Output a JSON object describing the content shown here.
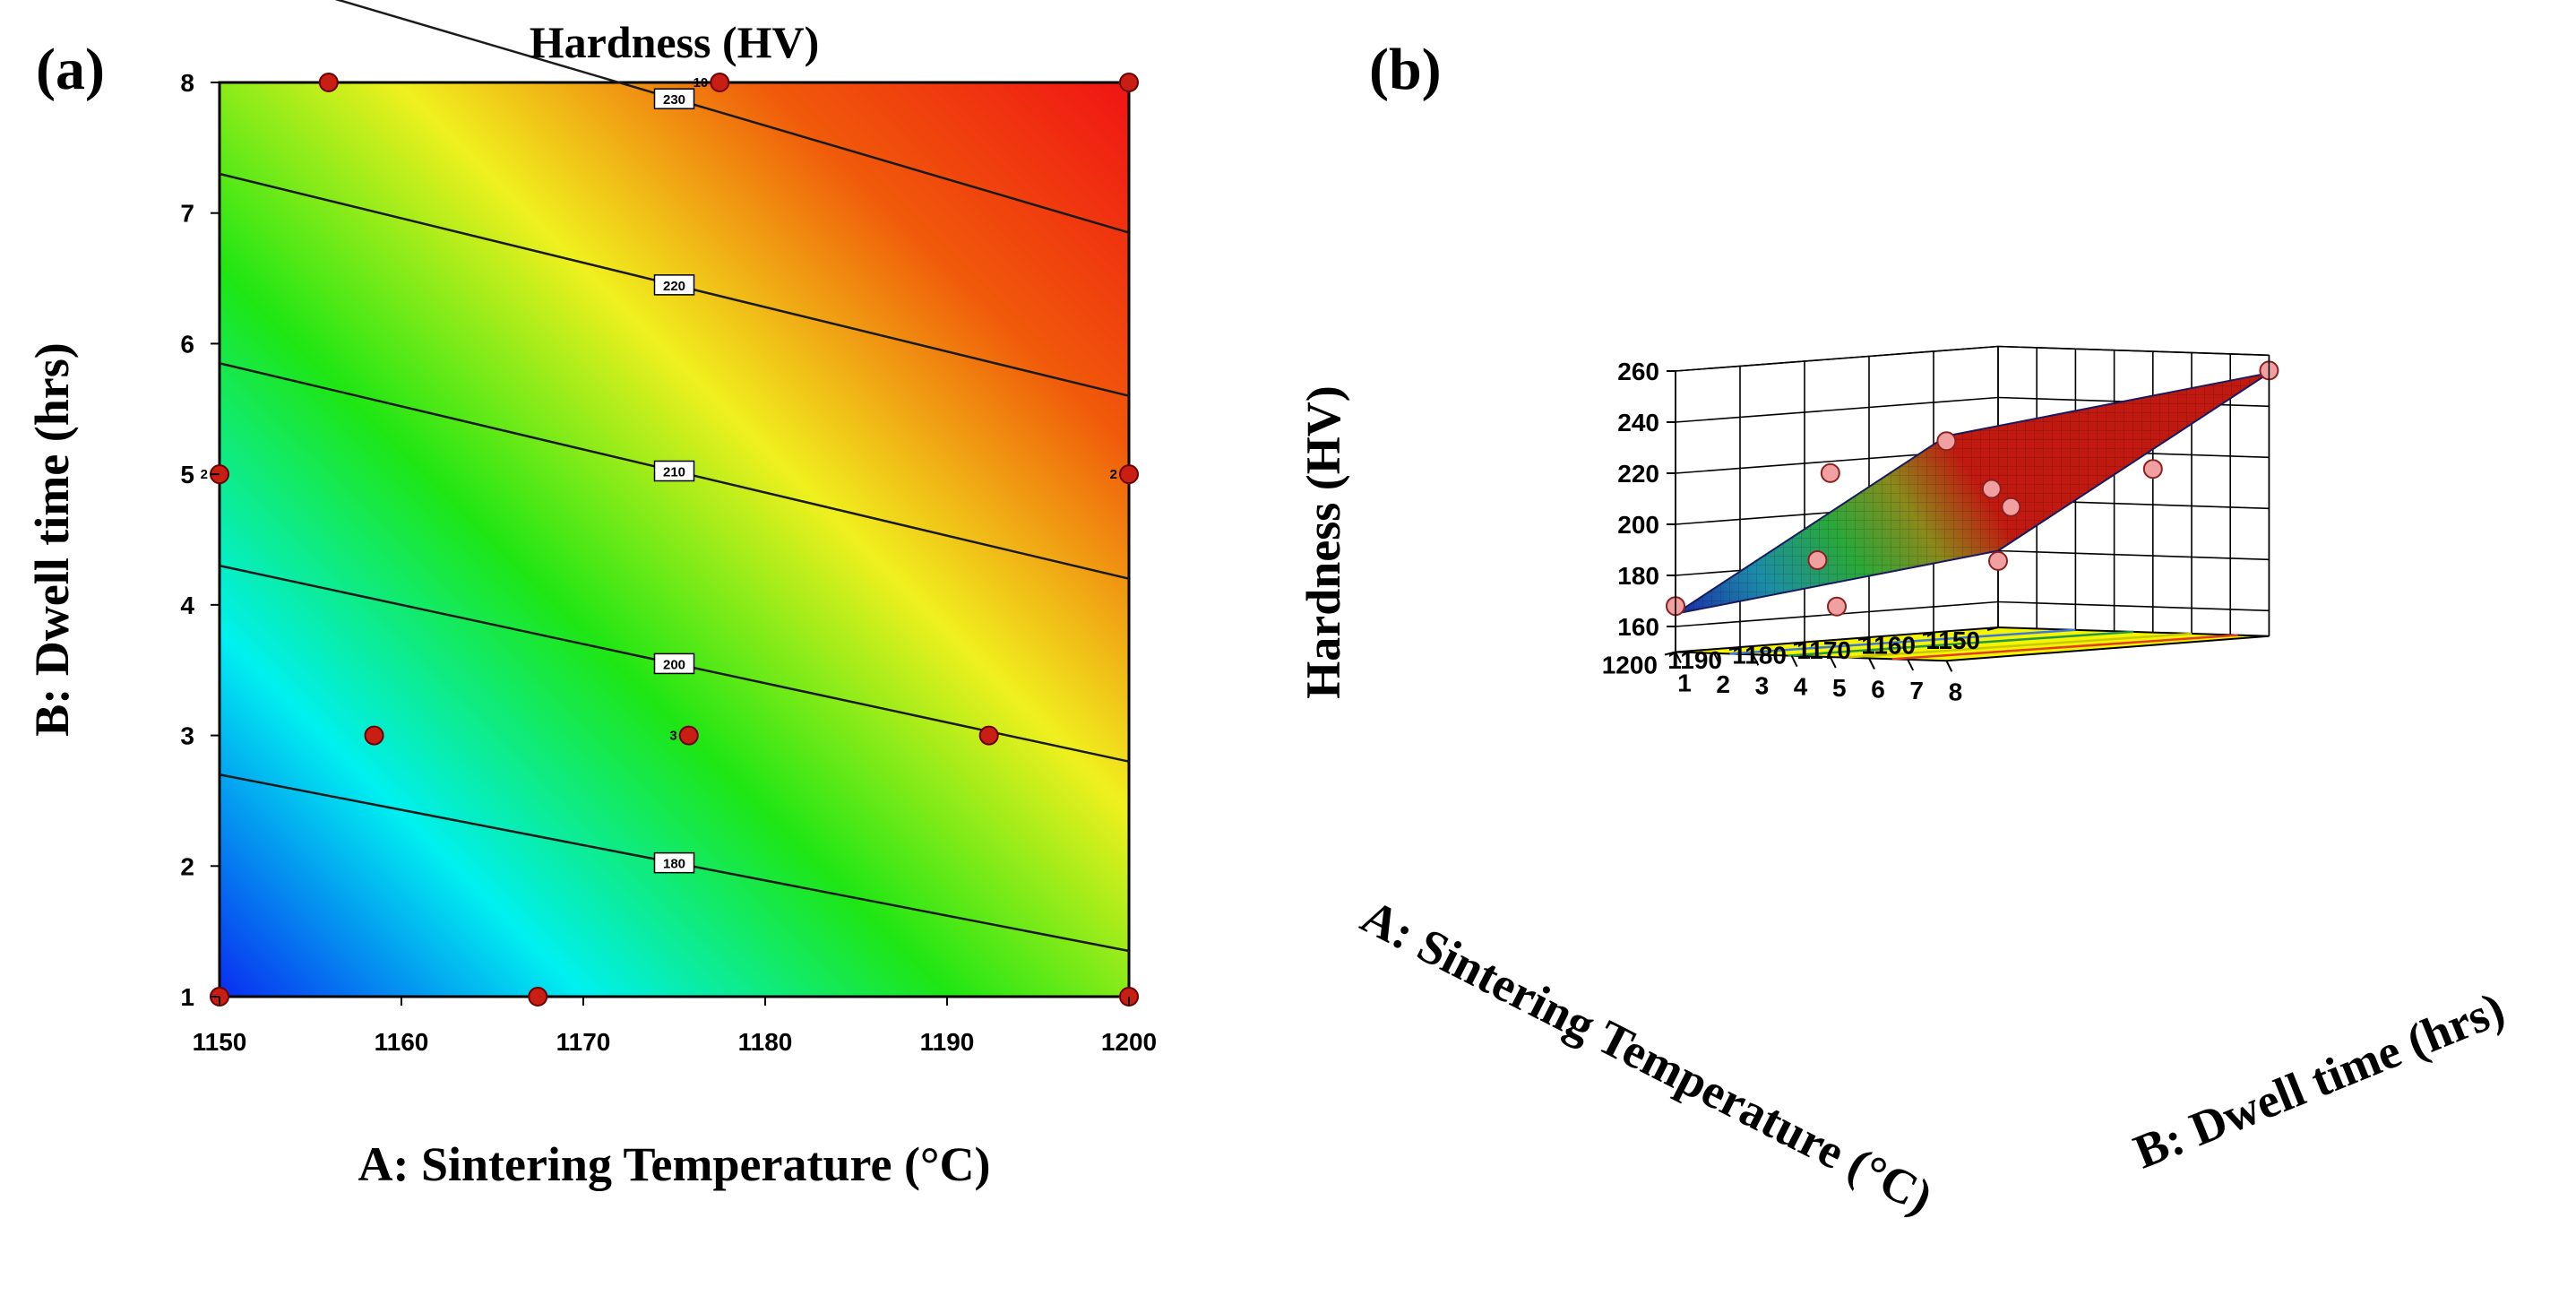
{
  "panel_a_label": "(a)",
  "panel_b_label": "(b)",
  "chart_data": [
    {
      "type": "contour",
      "panel": "(a)",
      "title": "Hardness (HV)",
      "xlabel": "A: Sintering Temperature (°C)",
      "ylabel": "B: Dwell time (hrs)",
      "xlim": [
        1150,
        1200
      ],
      "ylim": [
        1,
        8
      ],
      "xticks": [
        "1150",
        "1160",
        "1170",
        "1180",
        "1190",
        "1200"
      ],
      "yticks": [
        "1",
        "2",
        "3",
        "4",
        "5",
        "6",
        "7",
        "8"
      ],
      "contour_levels": [
        {
          "value": 180,
          "label": "180",
          "y_at_1150": 2.7,
          "y_at_1200": 1.35
        },
        {
          "value": 200,
          "label": "200",
          "y_at_1150": 4.3,
          "y_at_1200": 2.8
        },
        {
          "value": 210,
          "label": "210",
          "y_at_1150": 5.85,
          "y_at_1200": 4.2
        },
        {
          "value": 220,
          "label": "220",
          "y_at_1150": 7.3,
          "y_at_1200": 5.6
        },
        {
          "value": 230,
          "label": "230",
          "y_at_1150": 8.9,
          "y_at_1200": 6.85
        }
      ],
      "design_points": [
        {
          "x": 1150,
          "y": 1,
          "label": ""
        },
        {
          "x": 1167.5,
          "y": 1,
          "label": ""
        },
        {
          "x": 1200,
          "y": 1,
          "label": ""
        },
        {
          "x": 1158.5,
          "y": 3,
          "label": ""
        },
        {
          "x": 1175.8,
          "y": 3,
          "label": "3"
        },
        {
          "x": 1192.3,
          "y": 3,
          "label": ""
        },
        {
          "x": 1150,
          "y": 5,
          "label": "2"
        },
        {
          "x": 1200,
          "y": 5,
          "label": "2"
        },
        {
          "x": 1156,
          "y": 8,
          "label": ""
        },
        {
          "x": 1177.5,
          "y": 8,
          "label": "10"
        },
        {
          "x": 1200,
          "y": 8,
          "label": ""
        }
      ],
      "colormap": [
        "#0a2cf0",
        "#00f0f0",
        "#1ee614",
        "#f0f01e",
        "#f05a0a",
        "#f01414"
      ]
    },
    {
      "type": "surface3d",
      "panel": "(b)",
      "zlabel": "Hardness (HV)",
      "xlabel": "A: Sintering Temperature (°C)",
      "ylabel": "B: Dwell time (hrs)",
      "xlim": [
        1150,
        1200
      ],
      "ylim": [
        1,
        8
      ],
      "zlim": [
        150,
        260
      ],
      "xticks": [
        "1150",
        "1160",
        "1170",
        "1180",
        "1190",
        "1200"
      ],
      "yticks": [
        "1",
        "2",
        "3",
        "4",
        "5",
        "6",
        "7",
        "8"
      ],
      "zticks": [
        "160",
        "180",
        "200",
        "220",
        "240",
        "260"
      ],
      "surface_corners": [
        {
          "A": 1150,
          "B": 1,
          "HV": 180
        },
        {
          "A": 1200,
          "B": 1,
          "HV": 165
        },
        {
          "A": 1150,
          "B": 8,
          "HV": 253
        },
        {
          "A": 1200,
          "B": 8,
          "HV": 238
        }
      ],
      "floor_color": "#f5f500",
      "floor_contours": [
        {
          "B": 3.0,
          "color": "#3c78dc"
        },
        {
          "B": 4.5,
          "color": "#1e9650"
        },
        {
          "B": 6.0,
          "color": "#c8c800"
        },
        {
          "B": 7.2,
          "color": "#e03c28"
        }
      ],
      "observed_points": [
        {
          "A": 1150,
          "B": 1,
          "HV": 176
        },
        {
          "A": 1200,
          "B": 1,
          "HV": 168
        },
        {
          "A": 1150,
          "B": 8,
          "HV": 254
        },
        {
          "A": 1200,
          "B": 8,
          "HV": 236
        },
        {
          "A": 1175,
          "B": 5,
          "HV": 211
        },
        {
          "A": 1160,
          "B": 3,
          "HV": 200
        },
        {
          "A": 1190,
          "B": 3,
          "HV": 185
        },
        {
          "A": 1200,
          "B": 5,
          "HV": 222
        },
        {
          "A": 1175,
          "B": 1,
          "HV": 163
        },
        {
          "A": 1150,
          "B": 5,
          "HV": 214
        }
      ]
    }
  ]
}
